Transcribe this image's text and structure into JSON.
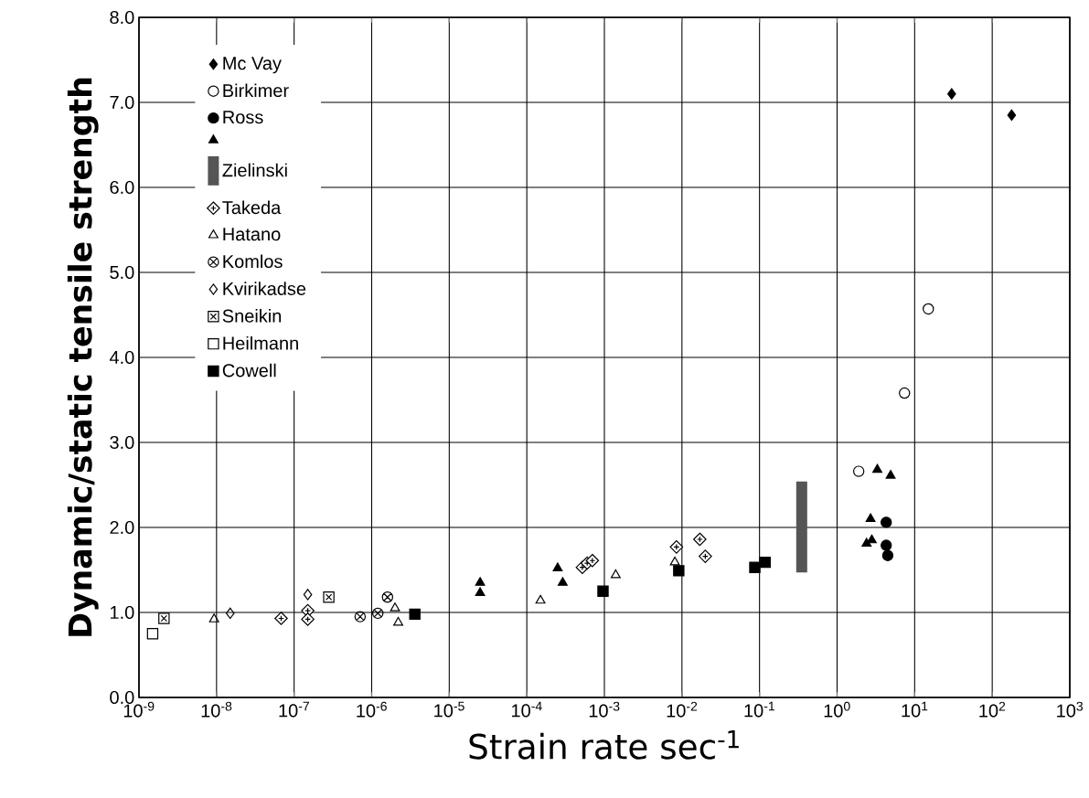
{
  "chart_data": {
    "type": "scatter",
    "xlabel": "Strain rate sec$^{-1}$",
    "ylabel": "Dynamic/static tensile strength",
    "log": "x",
    "grid": true,
    "legend": "top left",
    "xlim": [
      1e-09,
      1000
    ],
    "ylim": [
      0,
      8
    ],
    "xticks": [
      {
        "value": 1e-09,
        "label": "10$^{-9}$"
      },
      {
        "value": 1e-08,
        "label": "10$^{-8}$"
      },
      {
        "value": 1e-07,
        "label": "10$^{-7}$"
      },
      {
        "value": 1e-06,
        "label": "10$^{-6}$"
      },
      {
        "value": 1e-05,
        "label": "10$^{-5}$"
      },
      {
        "value": 0.0001,
        "label": "10$^{-4}$"
      },
      {
        "value": 0.001,
        "label": "10$^{-3}$"
      },
      {
        "value": 0.01,
        "label": "10$^{-2}$"
      },
      {
        "value": 0.1,
        "label": "10$^{-1}$"
      },
      {
        "value": 1,
        "label": "10$^{0}$"
      },
      {
        "value": 10,
        "label": "10$^{1}$"
      },
      {
        "value": 100,
        "label": "10$^{2}$"
      },
      {
        "value": 1000,
        "label": "10$^{3}$"
      }
    ],
    "yticks": [
      {
        "value": 0,
        "label": "0.0"
      },
      {
        "value": 1,
        "label": "1.0"
      },
      {
        "value": 2,
        "label": "2.0"
      },
      {
        "value": 3,
        "label": "3.0"
      },
      {
        "value": 4,
        "label": "4.0"
      },
      {
        "value": 5,
        "label": "5.0"
      },
      {
        "value": 6,
        "label": "6.0"
      },
      {
        "value": 7,
        "label": "7.0"
      },
      {
        "value": 8,
        "label": "8.0"
      }
    ],
    "series": [
      {
        "name": "Mc Vay",
        "color": "#000000",
        "marker": "diamond",
        "x": [
          30,
          178
        ],
        "values": [
          7.1,
          6.85
        ]
      },
      {
        "name": "Birkimer",
        "color": "#000000",
        "marker": "circle-open",
        "x": [
          1.9,
          7.4,
          15
        ],
        "values": [
          2.66,
          3.58,
          4.57
        ]
      },
      {
        "name": "Ross",
        "color": "#000000",
        "marker": "circle",
        "x": [
          4.3,
          4.3,
          4.5
        ],
        "values": [
          2.06,
          1.79,
          1.67
        ]
      },
      {
        "color": "#000000",
        "marker": "triangle",
        "x": [
          2.5e-05,
          2.5e-05,
          0.00025,
          0.00029,
          3.3,
          4.9,
          2.7,
          2.4,
          2.8
        ],
        "values": [
          1.35,
          1.23,
          1.52,
          1.35,
          2.68,
          2.61,
          2.1,
          1.81,
          1.85
        ]
      },
      {
        "name": "Zielinski",
        "type": "line",
        "color": "#555555",
        "marker": "none",
        "x": [
          0.35,
          0.35
        ],
        "values": [
          1.47,
          2.54
        ]
      },
      {
        "name": "Takeda",
        "color": "#000000",
        "marker": "diamond-cross",
        "x": [
          6.8e-08,
          1.5e-07,
          1.5e-07,
          0.00052,
          0.0006,
          0.0007,
          0.0085,
          0.017,
          0.02
        ],
        "values": [
          0.93,
          1.02,
          0.92,
          1.53,
          1.58,
          1.61,
          1.77,
          1.86,
          1.66
        ]
      },
      {
        "name": "Hatano",
        "color": "#000000",
        "marker": "triangle-open",
        "x": [
          9.3e-09,
          2e-06,
          2.2e-06,
          0.00015,
          0.0014,
          0.0081
        ],
        "values": [
          0.92,
          1.05,
          0.88,
          1.14,
          1.44,
          1.59
        ]
      },
      {
        "name": "Komlos",
        "color": "#000000",
        "marker": "cross",
        "x": [
          7.1e-07,
          1.2e-06,
          1.6e-06
        ],
        "values": [
          0.95,
          0.99,
          1.18
        ]
      },
      {
        "name": "Kvirikadse",
        "color": "#000000",
        "marker": "diamond-open",
        "x": [
          1.5e-08,
          1.5e-07
        ],
        "values": [
          0.99,
          1.21
        ]
      },
      {
        "name": "Sneikin",
        "color": "#000000",
        "marker": "square-cross",
        "x": [
          2.1e-09,
          2.8e-07
        ],
        "values": [
          0.93,
          1.18
        ]
      },
      {
        "name": "Heilmann",
        "color": "#000000",
        "marker": "square-open",
        "x": [
          1.5e-09
        ],
        "values": [
          0.75
        ]
      },
      {
        "name": "Cowell",
        "color": "#000000",
        "marker": "square",
        "x": [
          3.6e-06,
          0.00096,
          0.0091,
          0.087,
          0.118
        ],
        "values": [
          0.98,
          1.25,
          1.49,
          1.53,
          1.59
        ]
      }
    ]
  }
}
